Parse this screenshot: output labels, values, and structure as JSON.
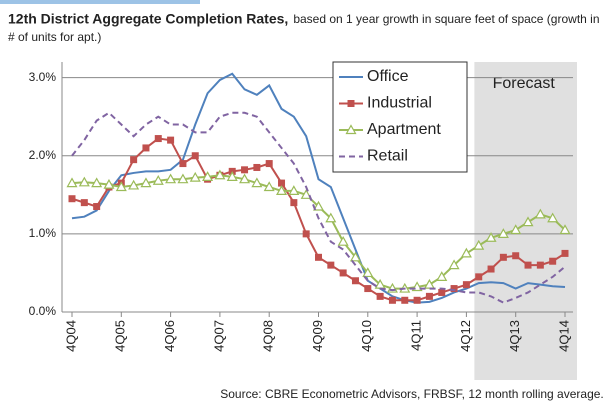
{
  "chart_data": {
    "type": "line",
    "title": "12th District Aggregate Completion Rates,",
    "subtitle": "based on 1 year growth in square feet of space (growth in # of units for apt.)",
    "source": "Source: CBRE Econometric Advisors, FRBSF, 12 month rolling average.",
    "annotation": "Forecast",
    "categories": [
      "4Q04",
      null,
      null,
      null,
      "4Q05",
      null,
      null,
      null,
      "4Q06",
      null,
      null,
      null,
      "4Q07",
      null,
      null,
      null,
      "4Q08",
      null,
      null,
      null,
      "4Q09",
      null,
      null,
      null,
      "4Q10",
      null,
      null,
      null,
      "4Q11",
      null,
      null,
      null,
      "4Q12",
      null,
      null,
      null,
      "4Q13",
      null,
      null,
      null,
      "4Q14"
    ],
    "ylim": [
      0,
      3.2
    ],
    "yticks": [
      {
        "value": 0,
        "label": "0.0%"
      },
      {
        "value": 1,
        "label": "1.0%"
      },
      {
        "value": 2,
        "label": "2.0%"
      },
      {
        "value": 3,
        "label": "3.0%"
      }
    ],
    "grid": true,
    "legend": "top",
    "series": [
      {
        "name": "Office",
        "color": "#4f81bd",
        "marker": "none",
        "dash": false,
        "values": [
          1.2,
          1.22,
          1.3,
          1.55,
          1.75,
          1.78,
          1.8,
          1.8,
          1.82,
          1.95,
          2.4,
          2.8,
          2.97,
          3.05,
          2.85,
          2.78,
          2.9,
          2.6,
          2.5,
          2.25,
          1.7,
          1.6,
          1.2,
          0.8,
          0.4,
          0.3,
          0.2,
          0.15,
          0.12,
          0.13,
          0.18,
          0.25,
          0.3,
          0.37,
          0.38,
          0.37,
          0.3,
          0.37,
          0.35,
          0.33,
          0.32
        ]
      },
      {
        "name": "Industrial",
        "color": "#c0504d",
        "marker": "square",
        "dash": false,
        "values": [
          1.45,
          1.4,
          1.35,
          1.6,
          1.65,
          1.95,
          2.1,
          2.22,
          2.2,
          1.9,
          2.0,
          1.7,
          1.75,
          1.8,
          1.82,
          1.85,
          1.9,
          1.65,
          1.4,
          1.0,
          0.7,
          0.6,
          0.5,
          0.4,
          0.3,
          0.2,
          0.15,
          0.15,
          0.15,
          0.2,
          0.25,
          0.3,
          0.35,
          0.45,
          0.55,
          0.7,
          0.72,
          0.6,
          0.6,
          0.65,
          0.75
        ]
      },
      {
        "name": "Apartment",
        "color": "#9bbb59",
        "marker": "triangle",
        "dash": false,
        "values": [
          1.65,
          1.66,
          1.65,
          1.63,
          1.6,
          1.62,
          1.65,
          1.68,
          1.7,
          1.7,
          1.72,
          1.73,
          1.75,
          1.73,
          1.7,
          1.65,
          1.6,
          1.55,
          1.55,
          1.5,
          1.35,
          1.2,
          0.9,
          0.7,
          0.5,
          0.35,
          0.3,
          0.3,
          0.32,
          0.35,
          0.45,
          0.6,
          0.75,
          0.85,
          0.95,
          1.0,
          1.05,
          1.15,
          1.25,
          1.2,
          1.05
        ]
      },
      {
        "name": "Retail",
        "color": "#8064a2",
        "marker": "none",
        "dash": true,
        "values": [
          2.0,
          2.2,
          2.45,
          2.55,
          2.4,
          2.25,
          2.4,
          2.5,
          2.4,
          2.4,
          2.3,
          2.3,
          2.5,
          2.55,
          2.55,
          2.5,
          2.3,
          2.1,
          1.9,
          1.6,
          1.2,
          0.9,
          0.8,
          0.6,
          0.4,
          0.3,
          0.28,
          0.3,
          0.3,
          0.3,
          0.3,
          0.28,
          0.25,
          0.25,
          0.2,
          0.12,
          0.18,
          0.25,
          0.35,
          0.45,
          0.58
        ]
      }
    ]
  }
}
